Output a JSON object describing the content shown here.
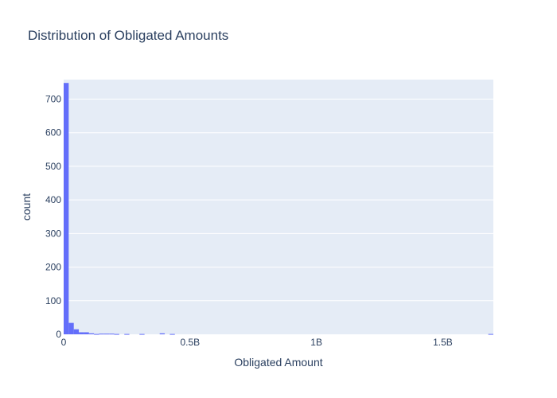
{
  "chart_data": {
    "type": "bar",
    "title": "Distribution of Obligated Amounts",
    "xlabel": "Obligated Amount",
    "ylabel": "count",
    "bin_size": 20000000,
    "xlim": [
      0,
      1700000000
    ],
    "ylim": [
      0,
      750
    ],
    "x_ticks": [
      {
        "value": 0,
        "label": "0"
      },
      {
        "value": 500000000,
        "label": "0.5B"
      },
      {
        "value": 1000000000,
        "label": "1B"
      },
      {
        "value": 1500000000,
        "label": "1.5B"
      }
    ],
    "y_ticks": [
      0,
      100,
      200,
      300,
      400,
      500,
      600,
      700
    ],
    "bins": [
      {
        "start": 0,
        "count": 748
      },
      {
        "start": 20000000,
        "count": 34
      },
      {
        "start": 40000000,
        "count": 15
      },
      {
        "start": 60000000,
        "count": 6
      },
      {
        "start": 80000000,
        "count": 6
      },
      {
        "start": 100000000,
        "count": 3
      },
      {
        "start": 120000000,
        "count": 1
      },
      {
        "start": 140000000,
        "count": 2
      },
      {
        "start": 160000000,
        "count": 2
      },
      {
        "start": 180000000,
        "count": 2
      },
      {
        "start": 200000000,
        "count": 1
      },
      {
        "start": 240000000,
        "count": 1
      },
      {
        "start": 300000000,
        "count": 1
      },
      {
        "start": 380000000,
        "count": 3
      },
      {
        "start": 420000000,
        "count": 1
      },
      {
        "start": 1680000000,
        "count": 1
      }
    ],
    "grid": true,
    "colors": {
      "bar": "#636efa",
      "plot_bg": "#e5ecf6",
      "grid": "#ffffff",
      "text": "#2a3f5f"
    }
  }
}
